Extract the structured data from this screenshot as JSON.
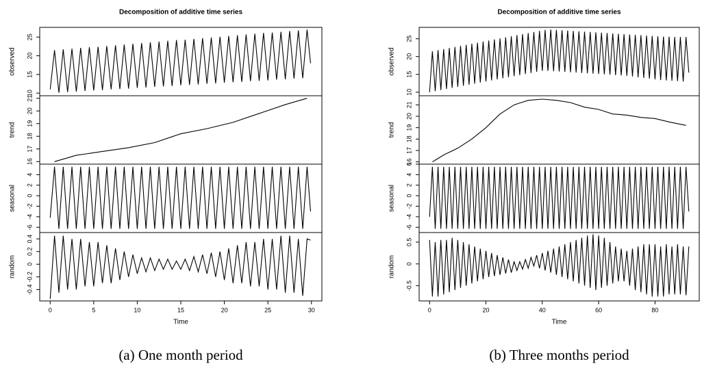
{
  "chart_data": [
    {
      "type": "line",
      "title": "Decomposition of additive time series",
      "xlabel": "Time",
      "caption": "(a) One month period",
      "xlim": [
        -1.2,
        31.2
      ],
      "xticks": [
        0,
        5,
        10,
        15,
        20,
        25,
        30
      ],
      "color": "#000000",
      "x": [
        0,
        0.5,
        1,
        1.5,
        2,
        2.5,
        3,
        3.5,
        4,
        4.5,
        5,
        5.5,
        6,
        6.5,
        7,
        7.5,
        8,
        8.5,
        9,
        9.5,
        10,
        10.5,
        11,
        11.5,
        12,
        12.5,
        13,
        13.5,
        14,
        14.5,
        15,
        15.5,
        16,
        16.5,
        17,
        17.5,
        18,
        18.5,
        19,
        19.5,
        20,
        20.5,
        21,
        21.5,
        22,
        22.5,
        23,
        23.5,
        24,
        24.5,
        25,
        25.5,
        26,
        26.5,
        27,
        27.5,
        28,
        28.5,
        29,
        29.5,
        29.9
      ],
      "panels": [
        {
          "ylabel": "observed",
          "ylim": [
            9.3,
            27.6
          ],
          "yticks": [
            10,
            15,
            20,
            25
          ],
          "values": [
            11,
            21.5,
            10.1,
            21.7,
            10.3,
            21.9,
            10.4,
            22.1,
            10.6,
            22.3,
            10.7,
            22.4,
            10.8,
            22.6,
            11,
            22.8,
            11.1,
            23,
            11.2,
            23.2,
            11.4,
            23.4,
            11.5,
            23.6,
            11.7,
            23.8,
            11.8,
            24,
            11.9,
            24.2,
            12.1,
            24.3,
            12.2,
            24.5,
            12.3,
            24.7,
            12.5,
            24.9,
            12.6,
            25.1,
            12.8,
            25.3,
            12.9,
            25.5,
            13,
            25.7,
            13.2,
            25.9,
            13.3,
            26.1,
            13.4,
            26.2,
            13.6,
            26.4,
            13.7,
            26.6,
            13.9,
            26.8,
            14,
            27,
            18
          ]
        },
        {
          "ylabel": "trend",
          "ylim": [
            15.8,
            21.2
          ],
          "yticks": [
            16,
            17,
            18,
            19,
            20,
            21
          ],
          "x": [
            0.5,
            3,
            6,
            9,
            12,
            15,
            18,
            21,
            24,
            27,
            29.5
          ],
          "values": [
            16,
            16.5,
            16.8,
            17.1,
            17.5,
            18.2,
            18.6,
            19.1,
            19.8,
            20.5,
            21
          ]
        },
        {
          "ylabel": "seasonal",
          "ylim": [
            -7,
            6
          ],
          "yticks": [
            -6,
            -4,
            -2,
            0,
            2,
            4
          ],
          "values": [
            -4.2,
            5.5,
            -6.3,
            5.5,
            -6.3,
            5.5,
            -6.3,
            5.5,
            -6.3,
            5.5,
            -6.3,
            5.5,
            -6.3,
            5.5,
            -6.3,
            5.5,
            -6.3,
            5.5,
            -6.3,
            5.5,
            -6.3,
            5.5,
            -6.3,
            5.5,
            -6.3,
            5.5,
            -6.3,
            5.5,
            -6.3,
            5.5,
            -6.3,
            5.5,
            -6.3,
            5.5,
            -6.3,
            5.5,
            -6.3,
            5.5,
            -6.3,
            5.5,
            -6.3,
            5.5,
            -6.3,
            5.5,
            -6.3,
            5.5,
            -6.3,
            5.5,
            -6.3,
            5.5,
            -6.3,
            5.5,
            -6.3,
            5.5,
            -6.3,
            5.5,
            -6.3,
            5.5,
            -6.3,
            5.5,
            -3
          ]
        },
        {
          "ylabel": "random",
          "ylim": [
            -0.58,
            0.5
          ],
          "yticks": [
            -0.4,
            -0.2,
            0.0,
            0.2,
            0.4
          ],
          "values": [
            -0.55,
            0.45,
            -0.45,
            0.45,
            -0.4,
            0.4,
            -0.4,
            0.4,
            -0.35,
            0.35,
            -0.35,
            0.35,
            -0.3,
            0.3,
            -0.3,
            0.25,
            -0.25,
            0.2,
            -0.2,
            0.15,
            -0.15,
            0.1,
            -0.12,
            0.1,
            -0.1,
            0.08,
            -0.08,
            0.08,
            -0.08,
            0.05,
            -0.08,
            0.08,
            -0.1,
            0.12,
            -0.12,
            0.15,
            -0.15,
            0.18,
            -0.2,
            0.2,
            -0.25,
            0.25,
            -0.3,
            0.3,
            -0.3,
            0.35,
            -0.35,
            0.35,
            -0.35,
            0.4,
            -0.4,
            0.4,
            -0.4,
            0.45,
            -0.45,
            0.45,
            -0.45,
            0.4,
            -0.5,
            0.4,
            0.38
          ]
        }
      ]
    },
    {
      "type": "line",
      "title": "Decomposition of additive time series",
      "xlabel": "Time",
      "caption": "(b) Three months period",
      "xlim": [
        -3.7,
        95.7
      ],
      "xticks": [
        0,
        20,
        40,
        60,
        80
      ],
      "color": "#000000",
      "x": [
        0,
        1,
        2,
        3,
        4,
        5,
        6,
        7,
        8,
        9,
        10,
        11,
        12,
        13,
        14,
        15,
        16,
        17,
        18,
        19,
        20,
        21,
        22,
        23,
        24,
        25,
        26,
        27,
        28,
        29,
        30,
        31,
        32,
        33,
        34,
        35,
        36,
        37,
        38,
        39,
        40,
        41,
        42,
        43,
        44,
        45,
        46,
        47,
        48,
        49,
        50,
        51,
        52,
        53,
        54,
        55,
        56,
        57,
        58,
        59,
        60,
        61,
        62,
        63,
        64,
        65,
        66,
        67,
        68,
        69,
        70,
        71,
        72,
        73,
        74,
        75,
        76,
        77,
        78,
        79,
        80,
        81,
        82,
        83,
        84,
        85,
        86,
        87,
        88,
        89,
        90,
        91,
        92
      ],
      "panels": [
        {
          "ylabel": "observed",
          "ylim": [
            9,
            28.2
          ],
          "yticks": [
            10,
            15,
            20,
            25
          ],
          "values": [
            10,
            21.5,
            10.3,
            21.8,
            10.6,
            22.1,
            10.9,
            22.4,
            11.2,
            22.7,
            11.5,
            23,
            11.8,
            23.3,
            12.1,
            23.6,
            12.4,
            23.9,
            12.7,
            24.2,
            13,
            24.5,
            13.3,
            24.8,
            13.6,
            25.1,
            13.9,
            25.4,
            14.2,
            25.7,
            14.5,
            26,
            14.8,
            26.3,
            15.1,
            26.6,
            15.4,
            26.9,
            15.7,
            27.2,
            16,
            27.5,
            16,
            27.6,
            15.9,
            27.5,
            15.8,
            27.4,
            15.7,
            27.3,
            15.6,
            27.2,
            15.5,
            27.1,
            15.4,
            27,
            15.3,
            26.9,
            15.2,
            26.8,
            15.1,
            26.7,
            15,
            26.6,
            14.9,
            26.5,
            14.8,
            26.4,
            14.7,
            26.3,
            14.6,
            26.2,
            14.4,
            26.1,
            14.2,
            26,
            14,
            25.9,
            13.8,
            25.8,
            13.6,
            25.7,
            13.4,
            25.6,
            13.3,
            25.6,
            13.2,
            25.5,
            13.1,
            25.5,
            13,
            25.5,
            15.5
          ]
        },
        {
          "ylabel": "trend",
          "ylim": [
            15.8,
            21.8
          ],
          "yticks": [
            16,
            17,
            18,
            19,
            20,
            21
          ],
          "x": [
            1,
            5,
            10,
            15,
            20,
            25,
            30,
            35,
            40,
            45,
            50,
            55,
            60,
            65,
            70,
            75,
            80,
            85,
            91
          ],
          "values": [
            16,
            16.6,
            17.2,
            18,
            19,
            20.2,
            21,
            21.4,
            21.5,
            21.4,
            21.2,
            20.8,
            20.6,
            20.2,
            20.1,
            19.9,
            19.8,
            19.5,
            19.2
          ]
        },
        {
          "ylabel": "seasonal",
          "ylim": [
            -7,
            6
          ],
          "yticks": [
            -6,
            -4,
            -2,
            0,
            2,
            4,
            6
          ],
          "values": [
            -4,
            5.5,
            -6.3,
            5.5,
            -6.3,
            5.5,
            -6.3,
            5.5,
            -6.3,
            5.5,
            -6.3,
            5.5,
            -6.3,
            5.5,
            -6.3,
            5.5,
            -6.3,
            5.5,
            -6.3,
            5.5,
            -6.3,
            5.5,
            -6.3,
            5.5,
            -6.3,
            5.5,
            -6.3,
            5.5,
            -6.3,
            5.5,
            -6.3,
            5.5,
            -6.3,
            5.5,
            -6.3,
            5.5,
            -6.3,
            5.5,
            -6.3,
            5.5,
            -6.3,
            5.5,
            -6.3,
            5.5,
            -6.3,
            5.5,
            -6.3,
            5.5,
            -6.3,
            5.5,
            -6.3,
            5.5,
            -6.3,
            5.5,
            -6.3,
            5.5,
            -6.3,
            5.5,
            -6.3,
            5.5,
            -6.3,
            5.5,
            -6.3,
            5.5,
            -6.3,
            5.5,
            -6.3,
            5.5,
            -6.3,
            5.5,
            -6.3,
            5.5,
            -6.3,
            5.5,
            -6.3,
            5.5,
            -6.3,
            5.5,
            -6.3,
            5.5,
            -6.3,
            5.5,
            -6.3,
            5.5,
            -6.3,
            5.5,
            -6.3,
            5.5,
            -6.3,
            5.5,
            -6.3,
            5.5,
            -3
          ]
        },
        {
          "ylabel": "random",
          "ylim": [
            -0.85,
            0.72
          ],
          "yticks": [
            -0.5,
            0.0,
            0.5
          ],
          "values": [
            0.55,
            -0.75,
            0.5,
            -0.75,
            0.55,
            -0.7,
            0.55,
            -0.65,
            0.6,
            -0.6,
            0.55,
            -0.55,
            0.5,
            -0.5,
            0.45,
            -0.45,
            0.4,
            -0.4,
            0.35,
            -0.35,
            0.3,
            -0.3,
            0.25,
            -0.28,
            0.2,
            -0.25,
            0.15,
            -0.22,
            0.1,
            -0.2,
            0.05,
            -0.15,
            0.05,
            -0.12,
            0.1,
            -0.1,
            0.15,
            -0.05,
            0.2,
            -0.1,
            0.25,
            -0.15,
            0.3,
            -0.2,
            0.35,
            -0.25,
            0.4,
            -0.3,
            0.45,
            -0.35,
            0.5,
            -0.4,
            0.55,
            -0.45,
            0.6,
            -0.5,
            0.65,
            -0.55,
            0.68,
            -0.6,
            0.65,
            -0.55,
            0.6,
            -0.5,
            0.5,
            -0.45,
            0.4,
            -0.4,
            0.35,
            -0.4,
            0.3,
            -0.5,
            0.35,
            -0.6,
            0.4,
            -0.65,
            0.45,
            -0.7,
            0.45,
            -0.75,
            0.45,
            -0.75,
            0.4,
            -0.75,
            0.45,
            -0.7,
            0.4,
            -0.7,
            0.45,
            -0.7,
            0.4,
            -0.72,
            0.4
          ]
        }
      ]
    }
  ]
}
